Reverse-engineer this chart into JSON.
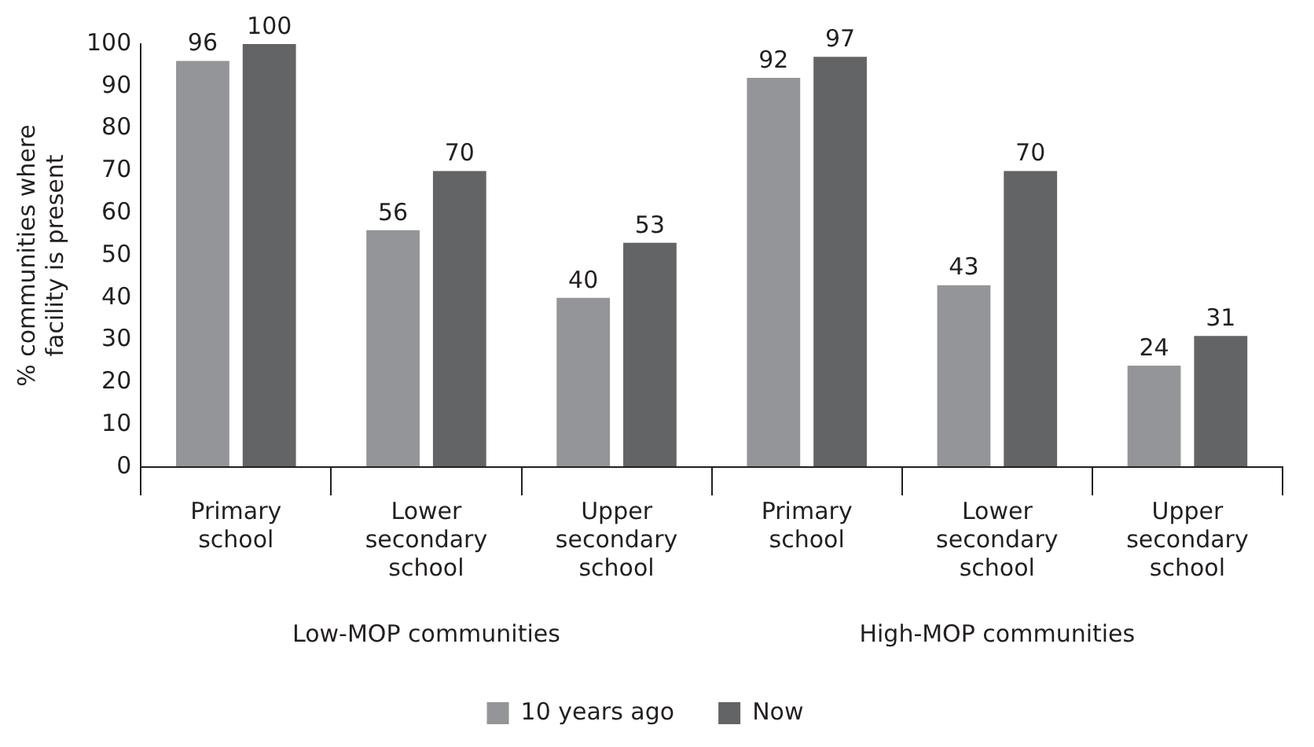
{
  "chart_data": {
    "type": "bar",
    "ylabel": "% communities where facility is present",
    "categories": [
      "Primary school",
      "Lower secondary school",
      "Upper secondary school",
      "Primary school",
      "Lower secondary school",
      "Upper secondary school"
    ],
    "series": [
      {
        "name": "10 years ago",
        "color": "#939598",
        "values": [
          96,
          56,
          40,
          92,
          43,
          24
        ]
      },
      {
        "name": "Now",
        "color": "#636466",
        "values": [
          100,
          70,
          53,
          97,
          70,
          31
        ]
      }
    ],
    "ylim": [
      0,
      100
    ],
    "yticks": [
      0,
      10,
      20,
      30,
      40,
      50,
      60,
      70,
      80,
      90,
      100
    ],
    "grid": false,
    "legend": "bottom",
    "data_labels": true,
    "annotations": [
      "Low-MOP communities",
      "High-MOP communities"
    ]
  }
}
